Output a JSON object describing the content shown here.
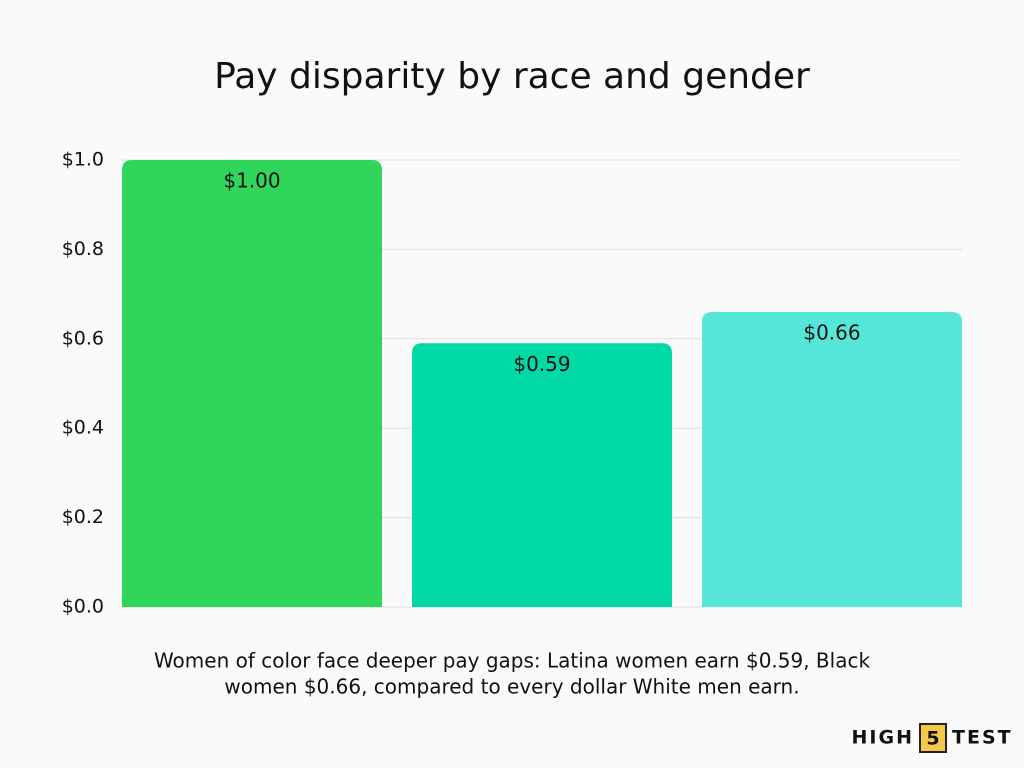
{
  "chart_data": {
    "type": "bar",
    "title": "Pay disparity by race and gender",
    "categories": [
      null,
      null,
      null
    ],
    "values": [
      1.0,
      0.59,
      0.66
    ],
    "value_labels": [
      "$1.00",
      "$0.59",
      "$0.66"
    ],
    "colors": [
      "#2fd65a",
      "#00d9a4",
      "#56e6d9"
    ],
    "ylim": [
      0,
      1
    ],
    "yticks": [
      {
        "value": 0,
        "label": "$0.0"
      },
      {
        "value": 0.2,
        "label": "$0.2"
      },
      {
        "value": 0.4,
        "label": "$0.4"
      },
      {
        "value": 0.6,
        "label": "$0.6"
      },
      {
        "value": 0.8,
        "label": "$0.8"
      },
      {
        "value": 1,
        "label": "$1.0"
      }
    ],
    "grid": true,
    "caption": [
      "Women of color face deeper pay gaps: Latina women earn $0.59, Black",
      "women $0.66, compared to every dollar White men earn."
    ],
    "logo": [
      "HIGH",
      "5",
      "TEST"
    ]
  }
}
